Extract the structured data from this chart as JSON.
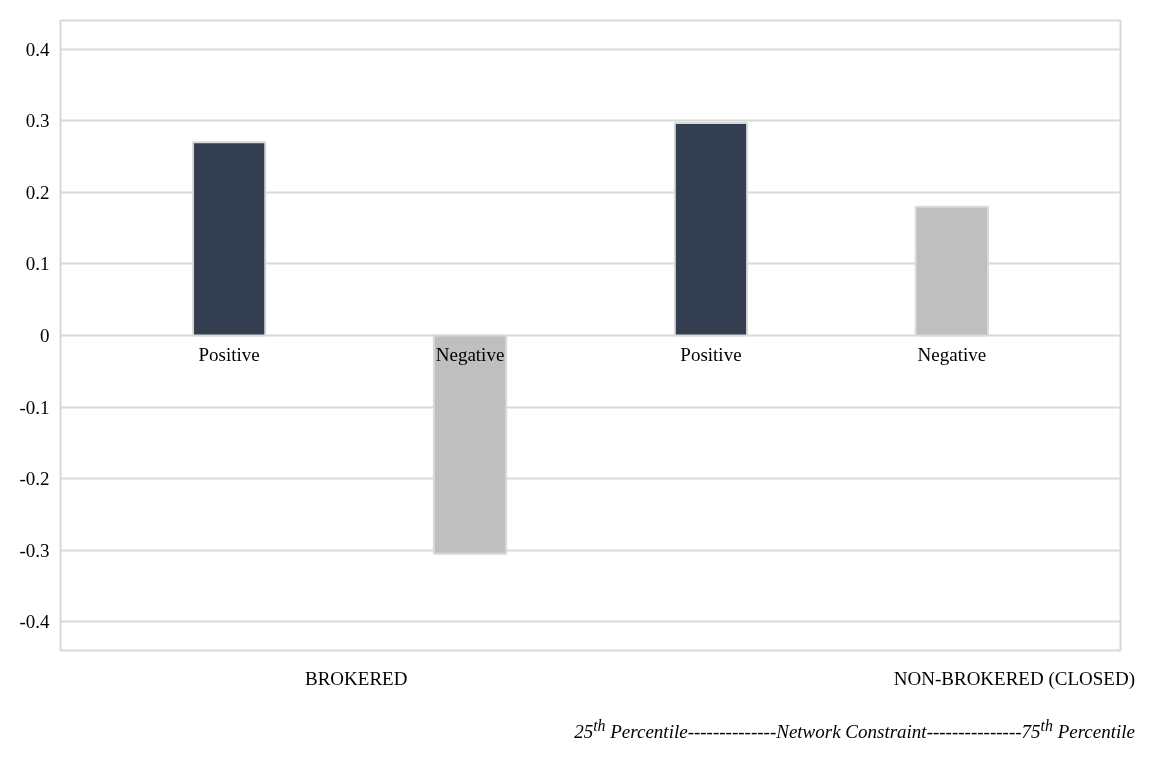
{
  "chart_data": {
    "type": "bar",
    "categories": [
      "Positive",
      "Negative",
      "Positive",
      "Negative"
    ],
    "values": [
      0.27,
      -0.305,
      0.297,
      0.18
    ],
    "colors": [
      "#333f50",
      "#bfbfbf",
      "#333f50",
      "#bfbfbf"
    ],
    "ylim": [
      -0.44,
      0.44
    ],
    "yticks": [
      {
        "value": -0.4,
        "label": "-0.4"
      },
      {
        "value": -0.3,
        "label": "-0.3"
      },
      {
        "value": -0.2,
        "label": "-0.2"
      },
      {
        "value": -0.1,
        "label": "-0.1"
      },
      0,
      0.1,
      0.2,
      0.3,
      0.4
    ],
    "grid": "y",
    "annotations": [
      "BROKERED",
      "NON-BROKERED (CLOSED)",
      "25$^{th}$ Percentile--------------Network Constraint---------------75$^{th}$ Percentile"
    ]
  }
}
